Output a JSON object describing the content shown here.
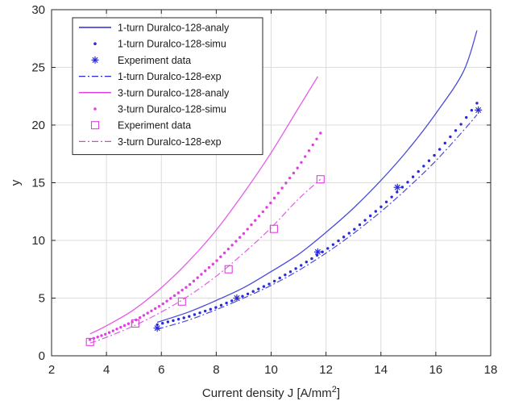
{
  "chart_data": {
    "type": "line",
    "xlabel": "Current density J [A/mm",
    "xlabel_sup": "2",
    "xlabel_tail": "]",
    "ylabel": "y",
    "xlim": [
      2,
      18
    ],
    "ylim": [
      0,
      30
    ],
    "xticks": [
      "2",
      "4",
      "6",
      "8",
      "10",
      "12",
      "14",
      "16",
      "18"
    ],
    "yticks": [
      "0",
      "5",
      "10",
      "15",
      "20",
      "25",
      "30"
    ],
    "grid": true,
    "legend_position": "top-left",
    "colors": {
      "blue": "#2a2ad6",
      "magenta": "#e040e0"
    },
    "series": [
      {
        "name": "1-turn Duralco-128-analy",
        "color": "blue",
        "style": "solid",
        "x": [
          5.85,
          7,
          8,
          9,
          10,
          11,
          12,
          13,
          14,
          15,
          16,
          17,
          17.5
        ],
        "y": [
          2.9,
          3.8,
          4.8,
          5.9,
          7.3,
          8.8,
          10.7,
          12.8,
          15.2,
          17.9,
          21.0,
          24.6,
          28.2
        ]
      },
      {
        "name": "1-turn Duralco-128-simu",
        "color": "blue",
        "style": "dotted",
        "x": [
          5.85,
          7,
          8,
          9,
          10,
          11,
          12,
          13,
          14,
          15,
          16,
          17,
          17.5
        ],
        "y": [
          2.7,
          3.4,
          4.2,
          5.2,
          6.3,
          7.7,
          9.2,
          10.9,
          12.9,
          15.1,
          17.5,
          20.3,
          21.9
        ]
      },
      {
        "name": "Experiment data",
        "color": "blue",
        "style": "asterisk",
        "x": [
          5.85,
          8.75,
          11.7,
          14.6,
          17.55
        ],
        "y": [
          2.4,
          5.0,
          9.0,
          14.6,
          21.3
        ]
      },
      {
        "name": "1-turn Duralco-128-exp",
        "color": "blue",
        "style": "dashdot",
        "x": [
          5.85,
          7,
          8,
          9,
          10,
          11,
          12,
          13,
          14,
          15,
          16,
          17,
          17.5
        ],
        "y": [
          2.3,
          3.1,
          4.0,
          5.0,
          6.1,
          7.4,
          8.9,
          10.6,
          12.5,
          14.6,
          16.9,
          19.5,
          20.9
        ]
      },
      {
        "name": "3-turn Duralco-128-analy",
        "color": "magenta",
        "style": "solid",
        "x": [
          3.4,
          4,
          5,
          6,
          7,
          8,
          9,
          10,
          11,
          11.7
        ],
        "y": [
          1.9,
          2.6,
          4.0,
          5.9,
          8.2,
          10.9,
          14.1,
          17.6,
          21.5,
          24.2
        ]
      },
      {
        "name": "3-turn Duralco-128-simu",
        "color": "magenta",
        "style": "dotted",
        "x": [
          3.4,
          4,
          5,
          6,
          7,
          8,
          9,
          10,
          11,
          11.8
        ],
        "y": [
          1.4,
          1.9,
          3.0,
          4.4,
          6.1,
          8.2,
          10.6,
          13.3,
          16.4,
          19.3
        ]
      },
      {
        "name": "Experiment data",
        "color": "magenta",
        "style": "square",
        "x": [
          3.4,
          5.05,
          6.75,
          8.45,
          10.1,
          11.8
        ],
        "y": [
          1.2,
          2.8,
          4.7,
          7.5,
          11.0,
          15.3
        ]
      },
      {
        "name": "3-turn Duralco-128-exp",
        "color": "magenta",
        "style": "dashdot",
        "x": [
          3.4,
          4,
          5,
          6,
          7,
          8,
          9,
          10,
          11,
          11.8
        ],
        "y": [
          1.1,
          1.6,
          2.6,
          3.8,
          5.2,
          6.9,
          8.9,
          11.1,
          13.6,
          15.3
        ]
      }
    ]
  }
}
